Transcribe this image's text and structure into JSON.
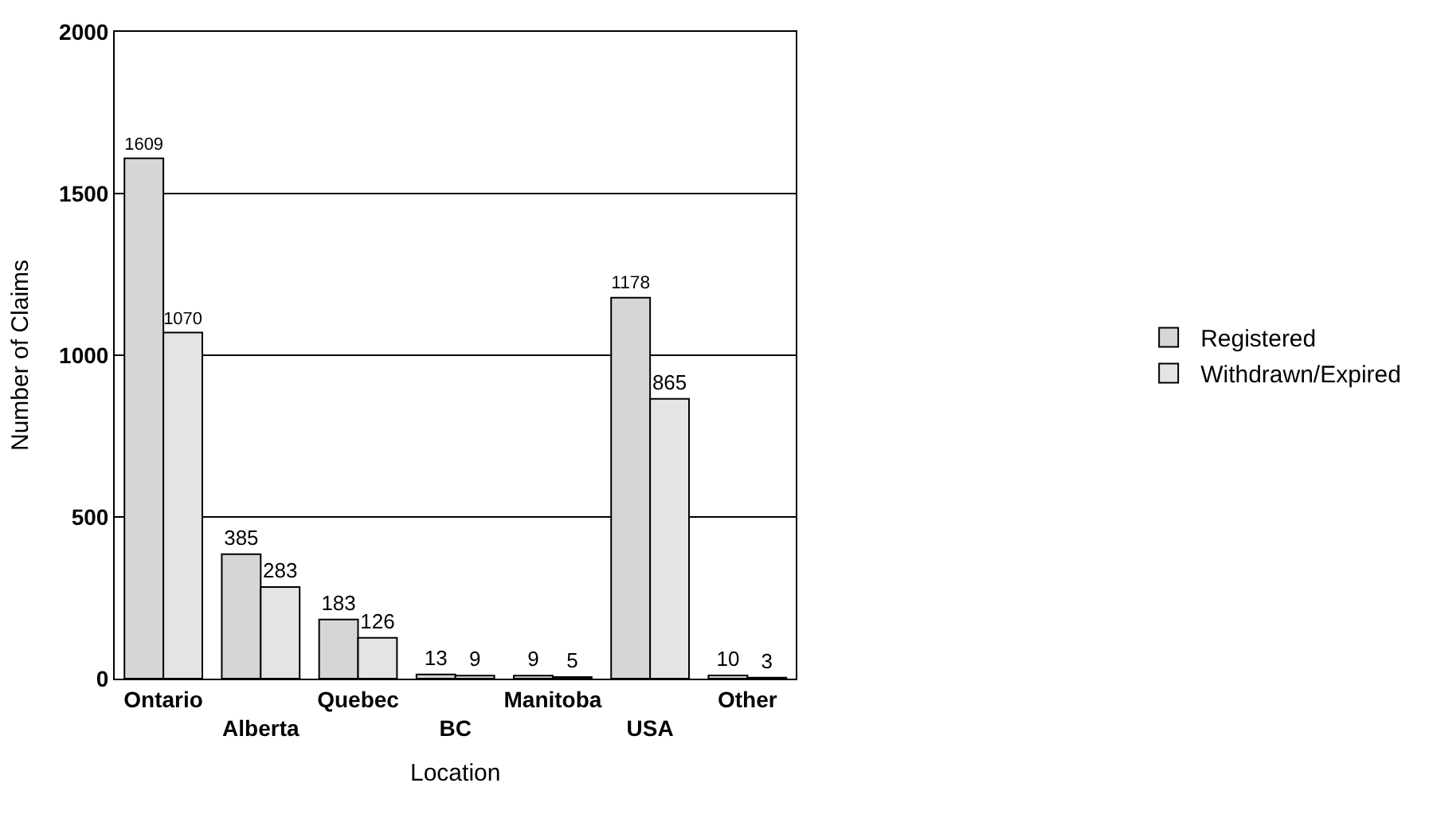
{
  "chart_data": {
    "type": "bar",
    "xlabel": "Location",
    "ylabel": "Number of Claims",
    "categories": [
      "Ontario",
      "Alberta",
      "Quebec",
      "BC",
      "Manitoba",
      "USA",
      "Other"
    ],
    "series": [
      {
        "name": "Registered",
        "color": "#d6d6d6",
        "values": [
          1609,
          385,
          183,
          13,
          9,
          1178,
          10
        ]
      },
      {
        "name": "Withdrawn/Expired",
        "color": "#e4e4e4",
        "values": [
          1070,
          283,
          126,
          9,
          5,
          865,
          3
        ]
      }
    ],
    "ylim": [
      0,
      2000
    ],
    "yticks": [
      0,
      500,
      1000,
      1500,
      2000
    ],
    "grid": "y",
    "legend": "right",
    "data_labels": true
  }
}
